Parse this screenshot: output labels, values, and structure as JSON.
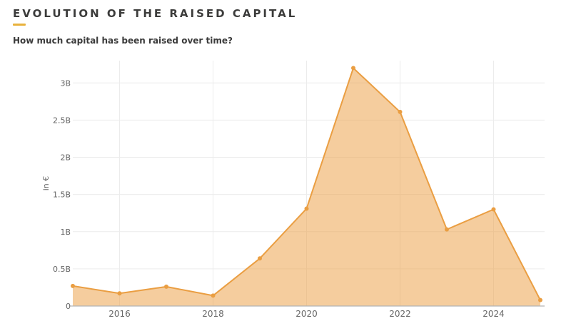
{
  "header": {
    "title": "EVOLUTION OF THE RAISED CAPITAL",
    "subtitle": "How much capital has been raised over time?",
    "accent_color": "#E8B23C",
    "title_color": "#3C3C3B"
  },
  "chart_data": {
    "type": "area",
    "title": "EVOLUTION OF THE RAISED CAPITAL",
    "subtitle": "How much capital has been raised over time?",
    "xlabel": "",
    "ylabel": "in €",
    "x": [
      2015,
      2016,
      2017,
      2018,
      2019,
      2020,
      2021,
      2022,
      2023,
      2024,
      2025
    ],
    "values": [
      0.27,
      0.17,
      0.26,
      0.14,
      0.64,
      1.31,
      3.2,
      2.61,
      1.03,
      1.3,
      0.08
    ],
    "unit": "B",
    "xlim": [
      2015,
      2025
    ],
    "ylim": [
      0,
      3.3
    ],
    "xticks": [
      {
        "value": 2016,
        "label": "2016"
      },
      {
        "value": 2018,
        "label": "2018"
      },
      {
        "value": 2020,
        "label": "2020"
      },
      {
        "value": 2022,
        "label": "2022"
      },
      {
        "value": 2024,
        "label": "2024"
      }
    ],
    "yticks": [
      {
        "value": 0,
        "label": "0"
      },
      {
        "value": 0.5,
        "label": "0.5B"
      },
      {
        "value": 1,
        "label": "1B"
      },
      {
        "value": 1.5,
        "label": "1.5B"
      },
      {
        "value": 2,
        "label": "2B"
      },
      {
        "value": 2.5,
        "label": "2.5B"
      },
      {
        "value": 3,
        "label": "3B"
      }
    ],
    "grid": true,
    "legend": false,
    "line_color": "#EA9E42",
    "fill_color": "rgba(236,156,61,0.5)",
    "grid_color": "#ECECEC",
    "axis_color": "#B5B5B5",
    "tick_color": "#666666",
    "marker_radius": 3
  }
}
